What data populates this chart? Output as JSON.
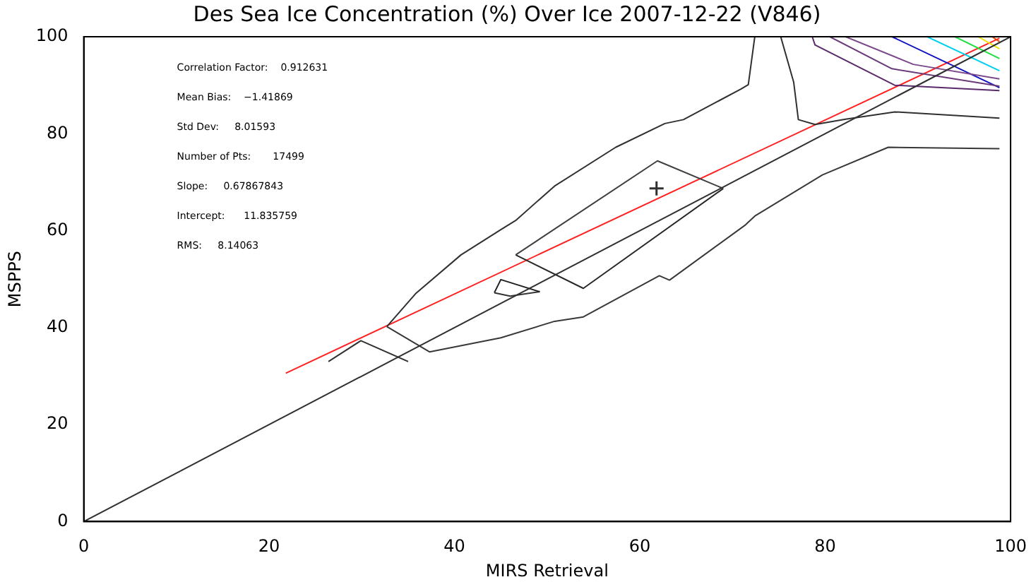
{
  "chart_data": {
    "type": "line",
    "title": "Des Sea Ice Concentration (%) Over Ice 2007-12-22 (V846)",
    "xlabel": "MIRS Retrieval",
    "ylabel": "MSPPS",
    "xlim": [
      0,
      100
    ],
    "ylim": [
      0,
      100
    ],
    "xticks": [
      0,
      20,
      40,
      60,
      80,
      100
    ],
    "yticks": [
      0,
      20,
      40,
      60,
      80,
      100
    ],
    "grid": false,
    "legend": false,
    "marker": "none",
    "annotations": [
      "Correlation Factor:    0.912631",
      "Mean Bias:    −1.41869",
      "Std Dev:     8.01593",
      "Number of Pts:       17499",
      "Slope:     0.67867843",
      "Intercept:      11.835759",
      "RMS:     8.14063"
    ],
    "series": [
      {
        "color": "#303030",
        "x": [
          0,
          100
        ],
        "values": [
          0,
          100
        ]
      },
      {
        "color": "#303030",
        "x": [
          32.7,
          35.8,
          40.7,
          45,
          46.6,
          50.8,
          57.4,
          62.7,
          64.7,
          70.9,
          71.7,
          72.4
        ],
        "values": [
          40.2,
          47,
          55,
          60.2,
          62.1,
          69.2,
          77.2,
          82.1,
          82.9,
          89.2,
          90.1,
          100
        ]
      },
      {
        "color": "#383838",
        "x": [
          32.7,
          37.3,
          45,
          50.8,
          53.9,
          62.1,
          63.2,
          71.4,
          72.4,
          79.7,
          86.8,
          98.8
        ],
        "values": [
          40.2,
          35,
          37.9,
          41.3,
          42.2,
          50.7,
          49.8,
          61.2,
          63,
          71.5,
          77.2,
          76.9
        ]
      },
      {
        "color": "#303030",
        "x": [
          75.2,
          76.6,
          77.1,
          78.9,
          82.2,
          87.5,
          98.8
        ],
        "values": [
          100,
          90.6,
          82.9,
          81.9,
          83,
          84.5,
          83.2
        ]
      },
      {
        "color": "#303030",
        "x": [
          26.4,
          29.9,
          35
        ],
        "values": [
          33,
          37.3,
          33
        ]
      },
      {
        "color": "#404040",
        "x": [
          46.6,
          61.9,
          69
        ],
        "values": [
          55,
          74.4,
          68.7
        ]
      },
      {
        "color": "#282828",
        "x": [
          46.6,
          53.9,
          69
        ],
        "values": [
          55,
          48.1,
          68.7
        ]
      },
      {
        "color": "#202020",
        "x": [
          44.3,
          45,
          49.2
        ],
        "values": [
          47.2,
          49.9,
          47.4
        ]
      },
      {
        "color": "#343434",
        "x": [
          44.3,
          46,
          49.2
        ],
        "values": [
          47.2,
          46.5,
          47.4
        ]
      },
      {
        "type": "scatter",
        "marker": "cross",
        "color": "#303030",
        "x": [
          61.8
        ],
        "values": [
          68.7
        ]
      },
      {
        "color": "#5a2a6a",
        "x": [
          78.6,
          78.9,
          87.5,
          98.8
        ],
        "values": [
          100,
          98.3,
          90,
          88.9
        ]
      },
      {
        "color": "#6a3a7a",
        "x": [
          80.5,
          87.2,
          98.8
        ],
        "values": [
          100,
          93.4,
          89.8
        ]
      },
      {
        "color": "#7a4a8a",
        "x": [
          82.2,
          89.5,
          98.8
        ],
        "values": [
          100,
          94.3,
          91.3
        ]
      },
      {
        "color": "#1010c0",
        "x": [
          87.2,
          98.8
        ],
        "values": [
          100,
          89.5
        ]
      },
      {
        "color": "#00d0f0",
        "x": [
          91,
          98.8
        ],
        "values": [
          100,
          93
        ]
      },
      {
        "color": "#20e040",
        "x": [
          94,
          98.8
        ],
        "values": [
          100,
          95.5
        ]
      },
      {
        "color": "#f0e000",
        "x": [
          96.5,
          98.8
        ],
        "values": [
          100,
          97.5
        ]
      },
      {
        "color": "#f04000",
        "x": [
          98,
          98.8
        ],
        "values": [
          100,
          99
        ]
      },
      {
        "color": "#ff2020",
        "x": [
          21.8,
          98.8
        ],
        "values": [
          30.6,
          99.7
        ]
      }
    ]
  }
}
